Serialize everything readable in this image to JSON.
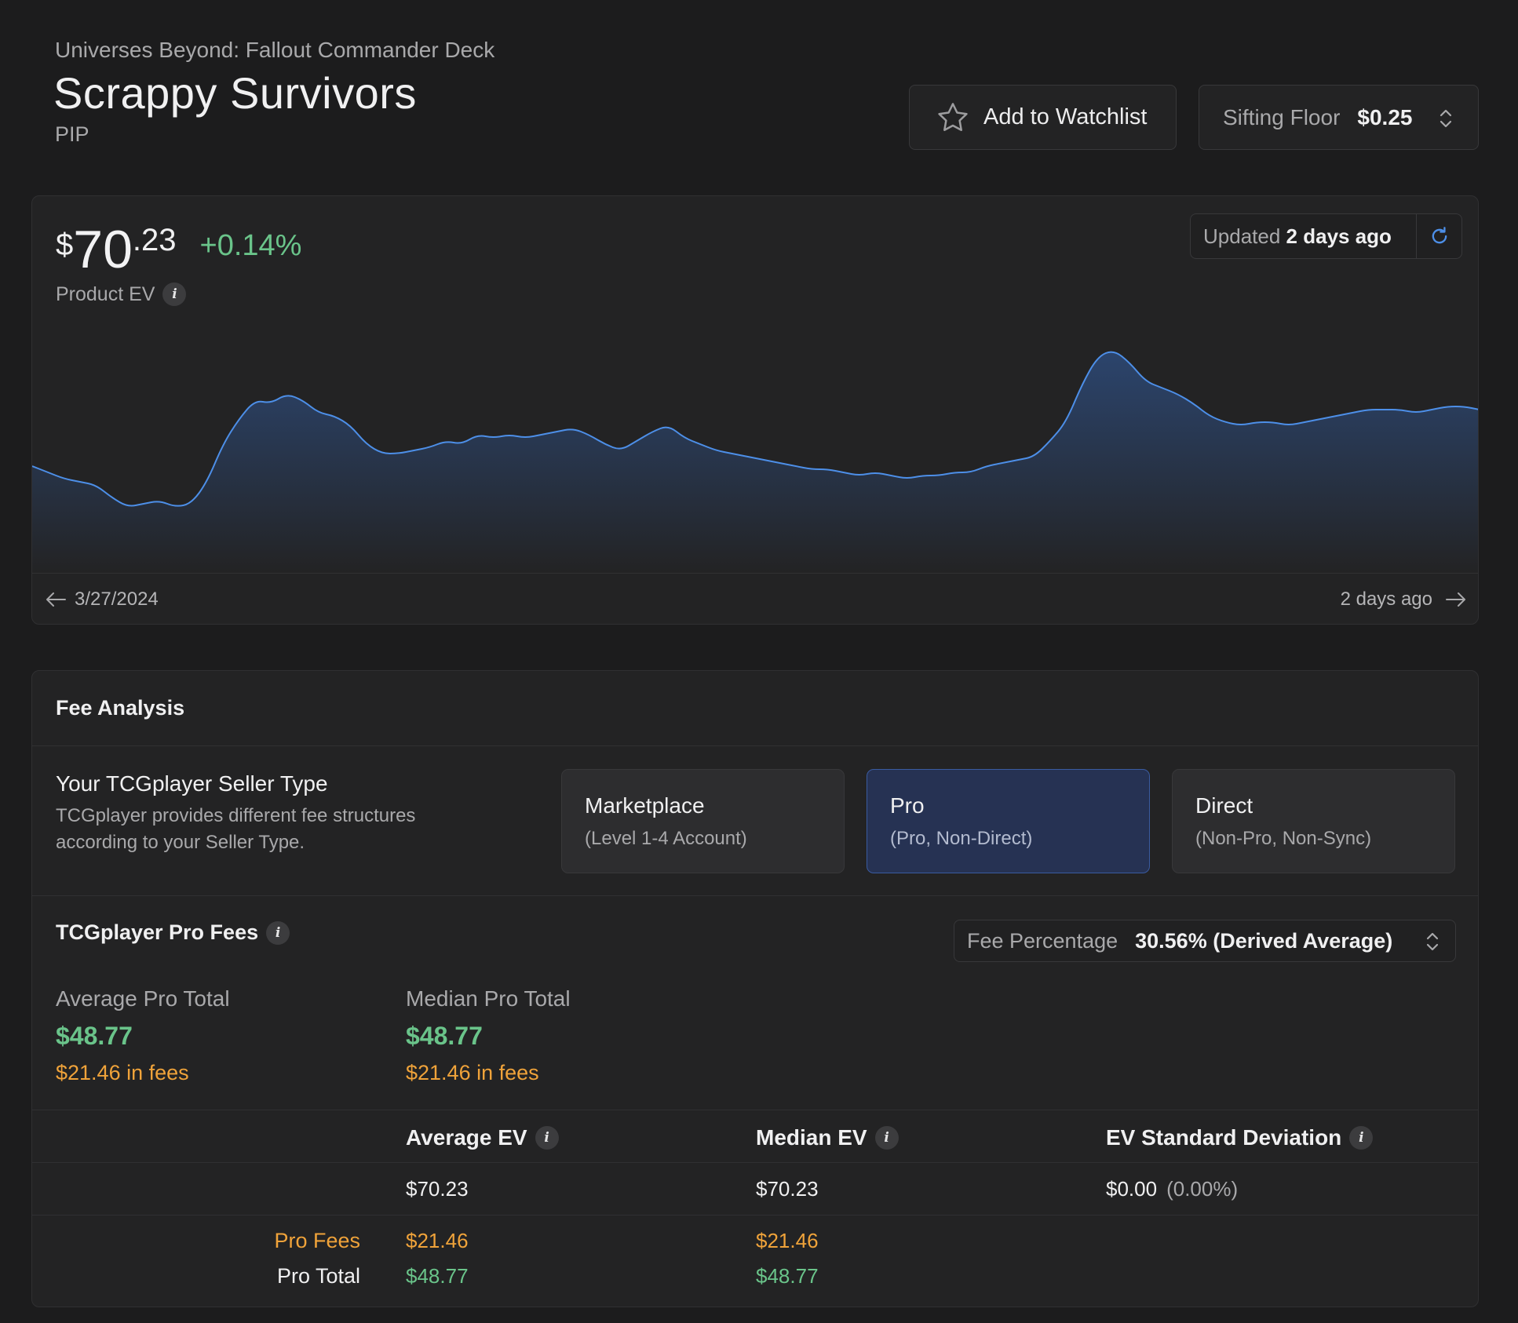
{
  "header": {
    "set_name": "Universes Beyond: Fallout Commander Deck",
    "product_title": "Scrappy Survivors",
    "set_code": "PIP",
    "watchlist_label": "Add to Watchlist",
    "sifting_floor_label": "Sifting Floor",
    "sifting_floor_value": "$0.25"
  },
  "price_card": {
    "currency": "$",
    "whole": "70",
    "cents": ".23",
    "change": "+0.14%",
    "ev_label": "Product EV",
    "updated_prefix": "Updated",
    "updated_value": "2 days ago",
    "range_start": "3/27/2024",
    "range_end": "2 days ago",
    "colors": {
      "line": "#4d8fe8",
      "change": "#6ac48a"
    }
  },
  "chart_data": {
    "type": "area",
    "title": "",
    "xlabel": "",
    "ylabel": "",
    "x_range": [
      "3/27/2024",
      "2 days ago"
    ],
    "grid": false,
    "series": [
      {
        "values": [
          67.9,
          67.7,
          67.5,
          67.4,
          67.3,
          66.9,
          66.6,
          66.7,
          66.8,
          66.6,
          66.7,
          67.4,
          68.6,
          69.4,
          70.0,
          69.9,
          70.2,
          70.0,
          69.6,
          69.5,
          69.2,
          68.6,
          68.3,
          68.3,
          68.4,
          68.5,
          68.7,
          68.6,
          68.9,
          68.8,
          68.9,
          68.8,
          68.9,
          69.0,
          69.1,
          68.9,
          68.6,
          68.4,
          68.7,
          69.0,
          69.2,
          68.8,
          68.6,
          68.4,
          68.3,
          68.2,
          68.1,
          68.0,
          67.9,
          67.8,
          67.8,
          67.7,
          67.6,
          67.7,
          67.6,
          67.5,
          67.6,
          67.6,
          67.7,
          67.7,
          67.9,
          68.0,
          68.1,
          68.2,
          68.7,
          69.3,
          70.5,
          71.4,
          71.6,
          71.2,
          70.6,
          70.4,
          70.2,
          69.9,
          69.5,
          69.3,
          69.2,
          69.3,
          69.3,
          69.2,
          69.3,
          69.4,
          69.5,
          69.6,
          69.7,
          69.7,
          69.7,
          69.6,
          69.7,
          69.8,
          69.8,
          69.7
        ]
      }
    ]
  },
  "fee_analysis": {
    "title": "Fee Analysis",
    "seller_heading": "Your TCGplayer Seller Type",
    "seller_desc": "TCGplayer provides different fee structures according to your Seller Type.",
    "seller_types": [
      {
        "title": "Marketplace",
        "sub": "(Level 1-4 Account)",
        "selected": false
      },
      {
        "title": "Pro",
        "sub": "(Pro, Non-Direct)",
        "selected": true
      },
      {
        "title": "Direct",
        "sub": "(Non-Pro, Non-Sync)",
        "selected": false
      }
    ],
    "pro_fees_heading": "TCGplayer Pro Fees",
    "fee_pct_label": "Fee Percentage",
    "fee_pct_value": "30.56% (Derived Average)",
    "average_total": {
      "label": "Average Pro Total",
      "value": "$48.77",
      "fees": "$21.46 in fees"
    },
    "median_total": {
      "label": "Median Pro Total",
      "value": "$48.77",
      "fees": "$21.46 in fees"
    },
    "table": {
      "headers": [
        "Average EV",
        "Median EV",
        "EV Standard Deviation"
      ],
      "ev_row": {
        "average": "$70.23",
        "median": "$70.23",
        "std": "$0.00",
        "std_pct": "(0.00%)"
      },
      "fees_row": {
        "label": "Pro Fees",
        "average": "$21.46",
        "median": "$21.46"
      },
      "total_row": {
        "label": "Pro Total",
        "average": "$48.77",
        "median": "$48.77"
      }
    },
    "colors": {
      "positive": "#6ac48a",
      "fees": "#f0a33a",
      "selected": "#263253"
    }
  }
}
